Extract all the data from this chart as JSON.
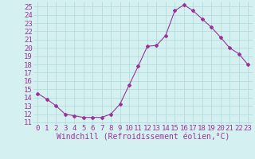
{
  "x": [
    0,
    1,
    2,
    3,
    4,
    5,
    6,
    7,
    8,
    9,
    10,
    11,
    12,
    13,
    14,
    15,
    16,
    17,
    18,
    19,
    20,
    21,
    22,
    23
  ],
  "y": [
    14.5,
    13.8,
    13.0,
    12.0,
    11.8,
    11.6,
    11.6,
    11.6,
    12.0,
    13.2,
    15.5,
    17.8,
    20.2,
    20.3,
    21.5,
    24.5,
    25.2,
    24.5,
    23.5,
    22.5,
    21.3,
    20.0,
    19.3,
    18.0
  ],
  "line_color": "#993399",
  "marker": "D",
  "marker_size": 2,
  "xlabel": "Windchill (Refroidissement éolien,°C)",
  "ylabel_ticks": [
    11,
    12,
    13,
    14,
    15,
    16,
    17,
    18,
    19,
    20,
    21,
    22,
    23,
    24,
    25
  ],
  "ylim": [
    10.8,
    25.6
  ],
  "xlim": [
    -0.5,
    23.5
  ],
  "background_color": "#d4f0f0",
  "grid_color": "#b0d8d8",
  "tick_label_color": "#993399",
  "axis_label_color": "#993399",
  "font_size_xlabel": 7,
  "font_size_ytick": 6.5,
  "font_size_xtick": 6.5
}
